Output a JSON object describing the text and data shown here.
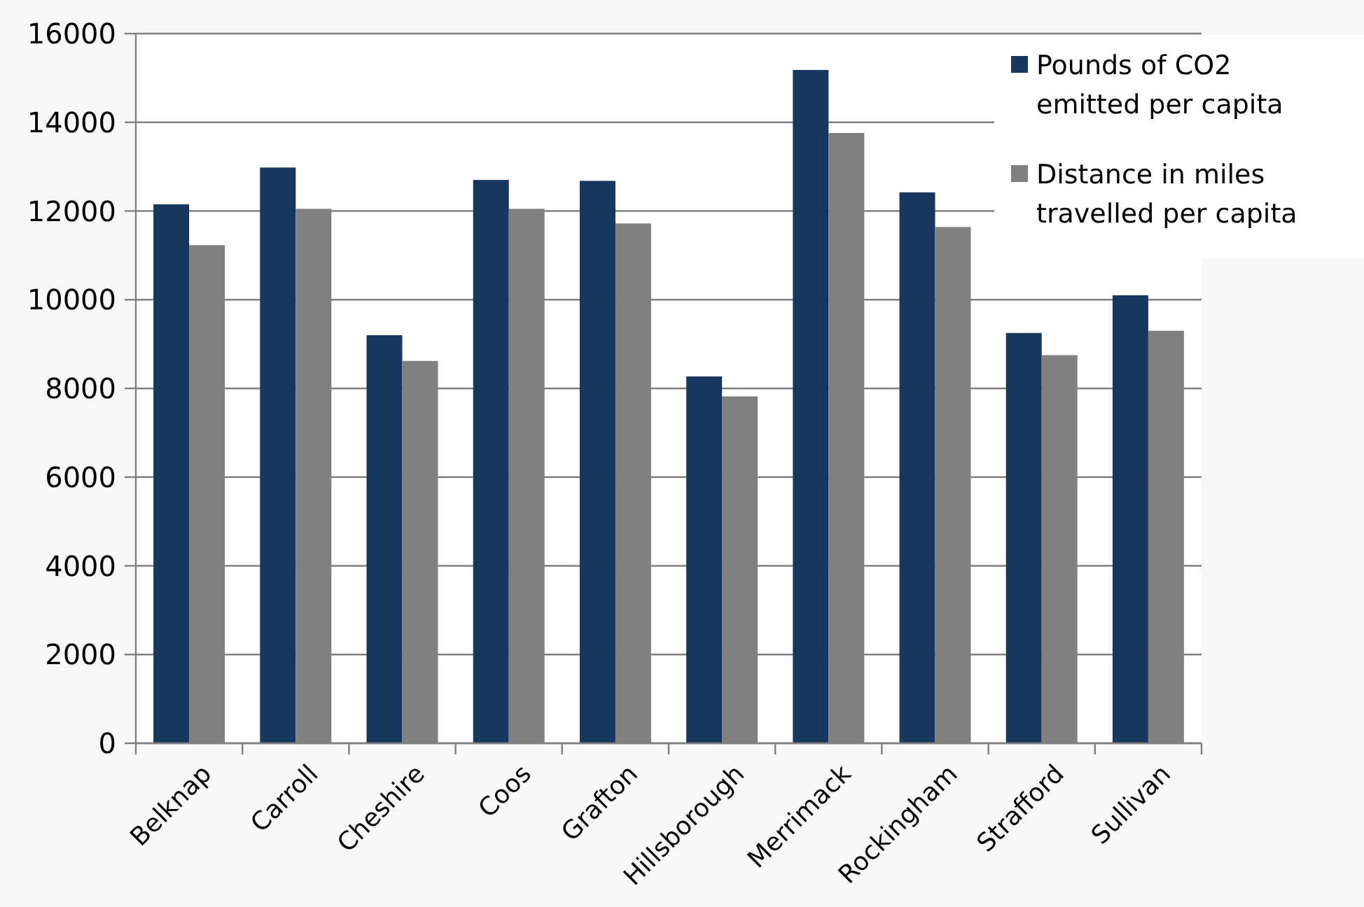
{
  "chart_data": {
    "type": "bar",
    "categories": [
      "Belknap",
      "Carroll",
      "Cheshire",
      "Coos",
      "Grafton",
      "Hillsborough",
      "Merrimack",
      "Rockingham",
      "Strafford",
      "Sullivan"
    ],
    "series": [
      {
        "name": "Pounds of CO2 emitted per capita",
        "color": "#17375e",
        "values": [
          12150,
          12980,
          9200,
          12700,
          12680,
          8270,
          15180,
          12420,
          9250,
          10100
        ]
      },
      {
        "name": "Distance in miles travelled per capita",
        "color": "#808080",
        "values": [
          11230,
          12050,
          8620,
          12050,
          11720,
          7820,
          13760,
          11640,
          8750,
          9300
        ]
      }
    ],
    "ylim": [
      0,
      16000
    ],
    "yticks": [
      0,
      2000,
      4000,
      6000,
      8000,
      10000,
      12000,
      14000,
      16000
    ],
    "grid": "y",
    "legend": "top right"
  }
}
